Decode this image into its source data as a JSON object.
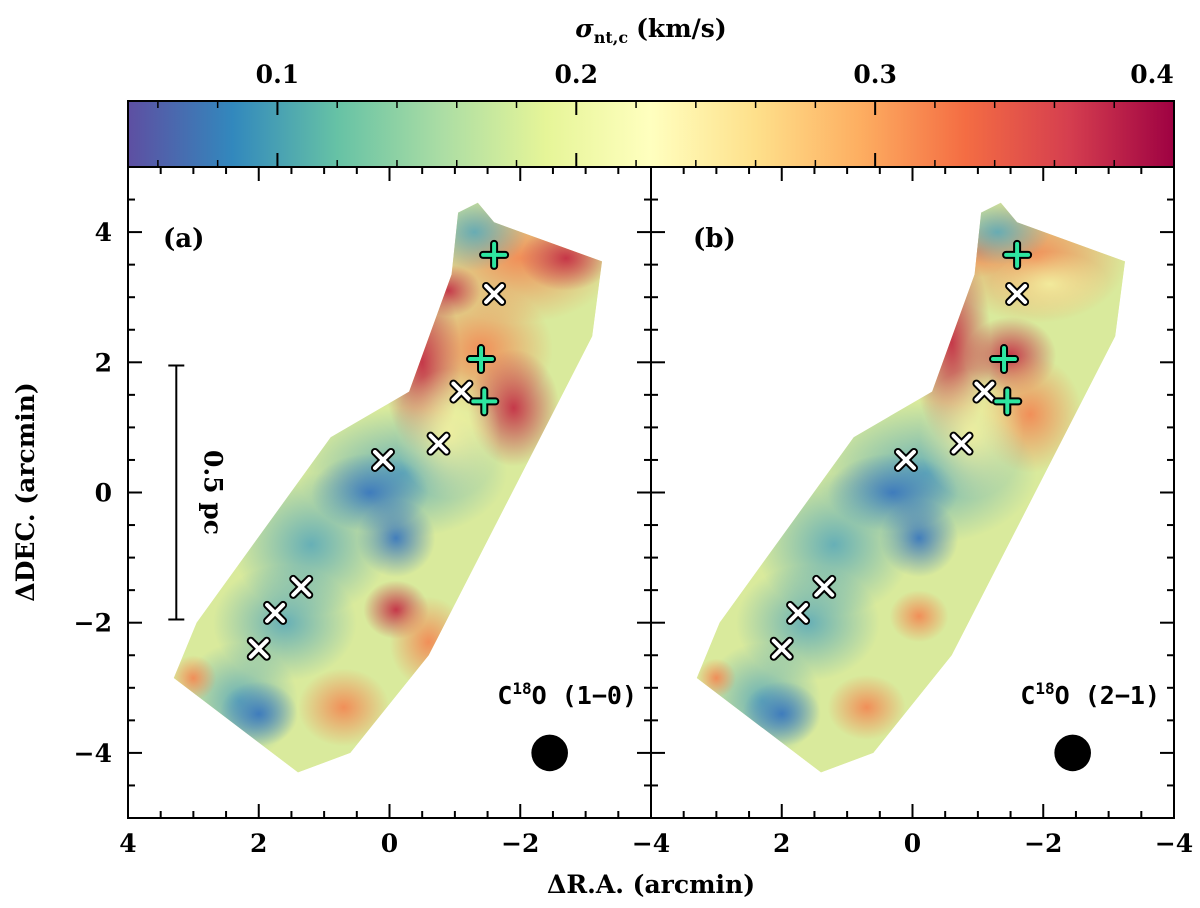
{
  "chart_data": {
    "type": "heatmap",
    "colorbar": {
      "label_symbol": "σ",
      "label_subscript": "nt,c",
      "label_unit": "(km/s)",
      "range": [
        0.05,
        0.4
      ],
      "ticks": [
        "0.1",
        "0.2",
        "0.3",
        "0.4"
      ],
      "tick_values": [
        0.1,
        0.2,
        0.3,
        0.4
      ],
      "colors": [
        "#5e4fa2",
        "#3288bd",
        "#66c2a5",
        "#abdda4",
        "#e6f598",
        "#ffffbf",
        "#fee08b",
        "#fdae61",
        "#f46d43",
        "#d53e4f",
        "#9e0142"
      ]
    },
    "xlabel": "ΔR.A. (arcmin)",
    "ylabel": "ΔDEC. (arcmin)",
    "xlim": [
      4,
      -4
    ],
    "ylim": [
      -5,
      5
    ],
    "x_ticks": [
      "4",
      "2",
      "0",
      "−2",
      "−4"
    ],
    "x_tick_values": [
      4,
      2,
      0,
      -2,
      -4
    ],
    "y_ticks": [
      "4",
      "2",
      "0",
      "−2",
      "−4"
    ],
    "y_tick_values": [
      4,
      2,
      0,
      -2,
      -4
    ],
    "scale_bar": {
      "label": "0.5 pc",
      "from": [
        3.2,
        1.95
      ],
      "to": [
        3.2,
        -1.95
      ]
    },
    "panels": [
      {
        "id": "a",
        "panel_label": "(a)",
        "line_prefix": "C",
        "line_iso": "18",
        "line_suffix": "O (1−0)",
        "beam_center": [
          -2.45,
          -4.0
        ],
        "beam_radius_arcmin": 0.28
      },
      {
        "id": "b",
        "panel_label": "(b)",
        "line_prefix": "C",
        "line_iso": "18",
        "line_suffix": "O (2−1)",
        "beam_center": [
          -2.45,
          -4.0
        ],
        "beam_radius_arcmin": 0.28
      }
    ],
    "map_outline_arcmin": [
      [
        -1.35,
        4.45
      ],
      [
        -1.6,
        4.15
      ],
      [
        -3.25,
        3.55
      ],
      [
        -3.1,
        2.4
      ],
      [
        -0.6,
        -2.5
      ],
      [
        0.6,
        -4.0
      ],
      [
        1.4,
        -4.3
      ],
      [
        3.3,
        -2.85
      ],
      [
        2.95,
        -2.0
      ],
      [
        0.9,
        0.85
      ],
      [
        -0.3,
        1.55
      ],
      [
        -0.95,
        3.35
      ],
      [
        -1.05,
        4.3
      ]
    ],
    "cross_markers_x": [
      [
        -1.6,
        3.05
      ],
      [
        -1.1,
        1.55
      ],
      [
        -0.75,
        0.75
      ],
      [
        0.1,
        0.5
      ],
      [
        1.35,
        -1.45
      ],
      [
        1.75,
        -1.85
      ],
      [
        2.0,
        -2.4
      ]
    ],
    "plus_markers": [
      [
        -1.6,
        3.65
      ],
      [
        -1.4,
        2.05
      ],
      [
        -1.45,
        1.4
      ]
    ]
  }
}
